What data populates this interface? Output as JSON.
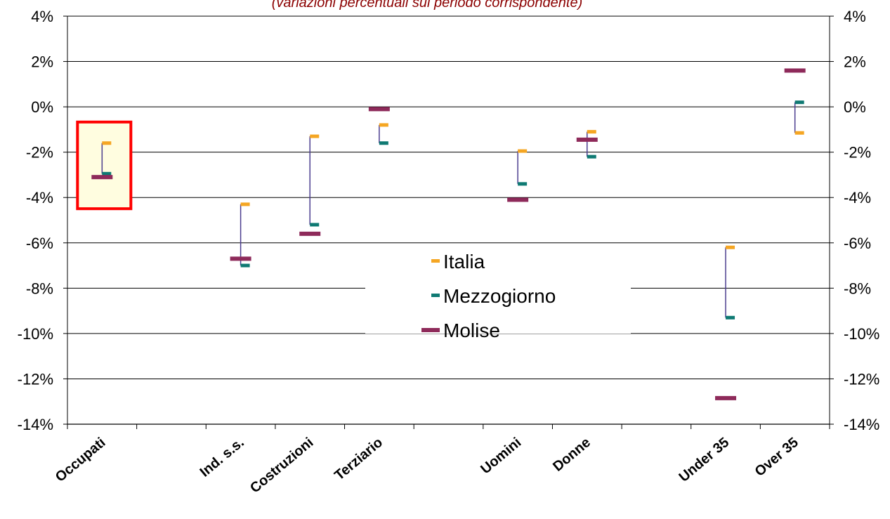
{
  "chart_data": {
    "type": "high-low",
    "subtitle": "(variazioni percentuali sul periodo corrispondente)",
    "categories": [
      "Occupati",
      "",
      "Ind. s.s.",
      "Costruzioni",
      "Terziario",
      "",
      "Uomini",
      "Donne",
      "",
      "Under 35",
      "Over 35"
    ],
    "ylim": [
      -14,
      4
    ],
    "yticks": [
      "4%",
      "2%",
      "0%",
      "-2%",
      "-4%",
      "-6%",
      "-8%",
      "-10%",
      "-12%",
      "-14%"
    ],
    "grid": true,
    "legend_position": "center-right",
    "highlight_category": "Occupati",
    "series": [
      {
        "name": "Italia",
        "color": "#f5a623",
        "values": [
          -1.6,
          null,
          -4.3,
          -1.3,
          -0.8,
          null,
          -1.95,
          -1.1,
          null,
          -6.2,
          -1.15
        ]
      },
      {
        "name": "Mezzogiorno",
        "color": "#0f7a73",
        "values": [
          -2.95,
          null,
          -7.0,
          -5.2,
          -1.6,
          null,
          -3.4,
          -2.2,
          null,
          -9.3,
          0.2
        ]
      },
      {
        "name": "Molise",
        "color": "#8e2a5a",
        "values": [
          -3.1,
          null,
          -6.7,
          -5.6,
          -0.1,
          null,
          -4.1,
          -1.45,
          null,
          -12.85,
          1.6
        ]
      }
    ]
  }
}
